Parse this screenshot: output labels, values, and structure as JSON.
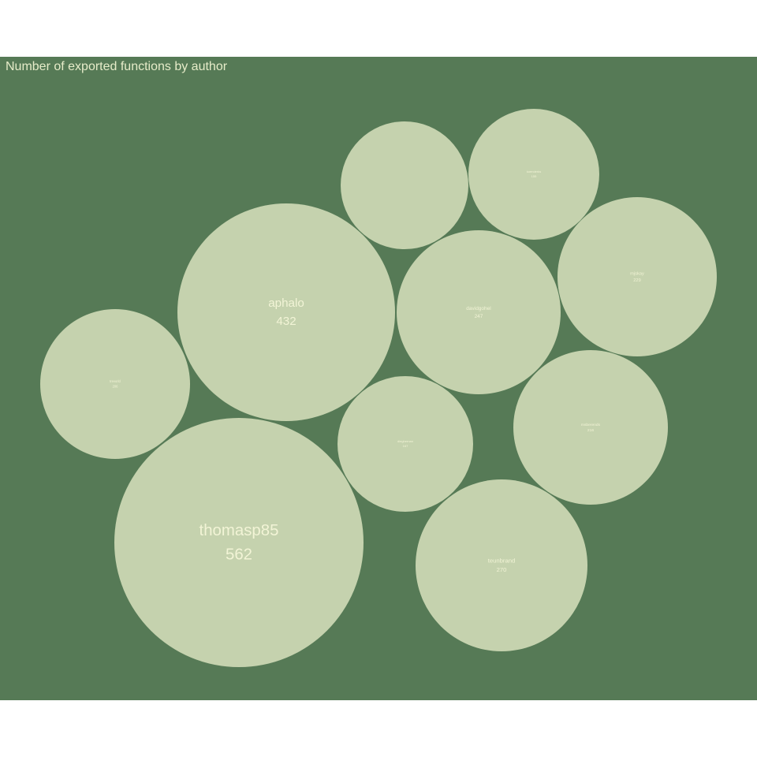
{
  "colors": {
    "panel_bg": "#567a56",
    "bubble_fill": "#c5d2ae",
    "label_text": "#f2f4d6",
    "title_text": "#e6ecc9"
  },
  "chart_data": {
    "type": "packed-bubble",
    "title": "Number of exported functions by author",
    "series": [
      {
        "name": "thomasp85",
        "value": 562
      },
      {
        "name": "aphalo",
        "value": 432
      },
      {
        "name": "teunbrand",
        "value": 270
      },
      {
        "name": "davidgohel",
        "value": 247
      },
      {
        "name": "mjskay",
        "value": 229
      },
      {
        "name": "msberends",
        "value": 216
      },
      {
        "name": "trevorld",
        "value": 206
      },
      {
        "name": "dieghernan",
        "value": 167
      },
      {
        "name": "koenderks",
        "value": 155
      },
      {
        "name": "",
        "value": 0
      }
    ]
  }
}
